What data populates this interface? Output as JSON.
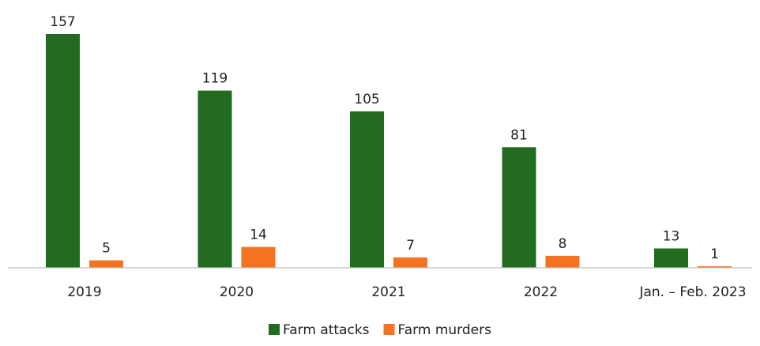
{
  "chart_data": {
    "type": "bar",
    "categories": [
      "2019",
      "2020",
      "2021",
      "2022",
      "Jan. –  Feb. 2023"
    ],
    "series": [
      {
        "name": "Farm attacks",
        "color": "#236B21",
        "values": [
          157,
          119,
          105,
          81,
          13
        ]
      },
      {
        "name": "Farm murders",
        "color": "#F37321",
        "values": [
          5,
          14,
          7,
          8,
          1
        ]
      }
    ],
    "title": "",
    "xlabel": "",
    "ylabel": "",
    "ylim": [
      0,
      160
    ],
    "grid": false,
    "data_labels": true,
    "legend_position": "bottom-center",
    "axis_color": "#BFBFBF"
  }
}
